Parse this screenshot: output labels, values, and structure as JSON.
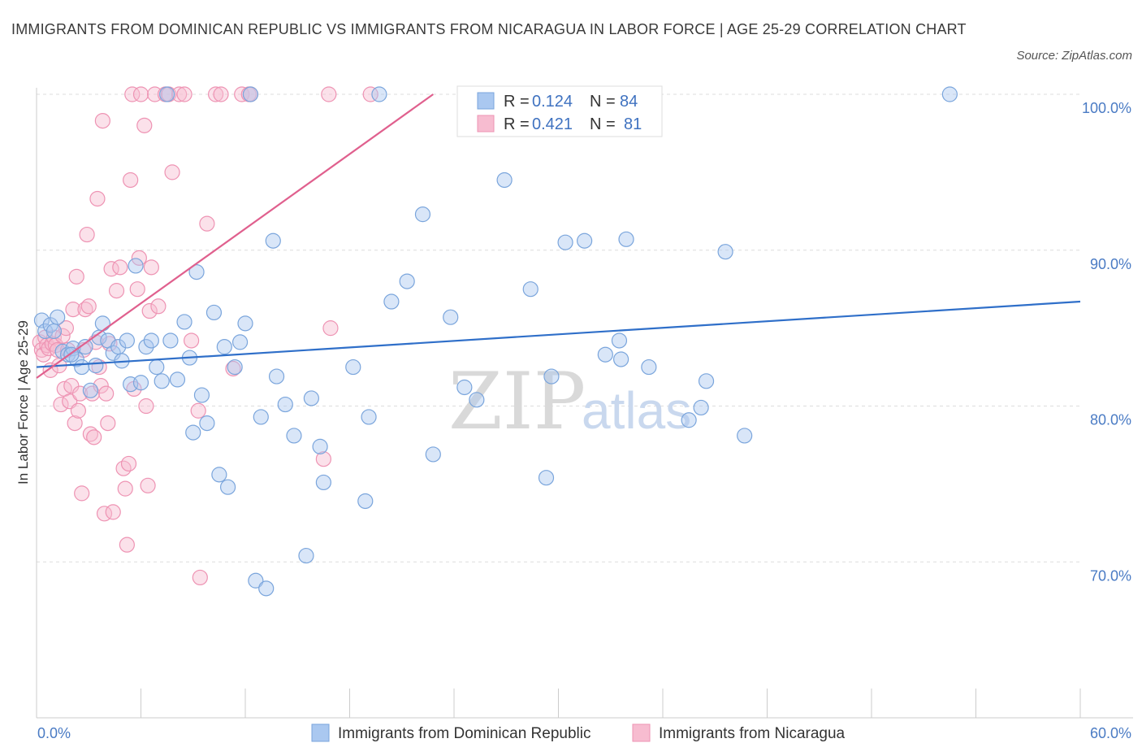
{
  "title": "IMMIGRANTS FROM DOMINICAN REPUBLIC VS IMMIGRANTS FROM NICARAGUA IN LABOR FORCE | AGE 25-29 CORRELATION CHART",
  "source": "Source: ZipAtlas.com",
  "watermark": {
    "zip": "ZIP",
    "atlas": "atlas"
  },
  "colors": {
    "blue_fill": "#aac8f0",
    "blue_stroke": "#7aa5dc",
    "blue_line": "#2f6fc9",
    "pink_fill": "#f7bcd0",
    "pink_stroke": "#ee93b3",
    "pink_line": "#e0608e",
    "grid": "#dddddd",
    "tick_text": "#4a7bc4"
  },
  "legend": {
    "series1": {
      "r_label": "R =",
      "r_value": "0.124",
      "n_label": "N =",
      "n_value": "84"
    },
    "series2": {
      "r_label": "R =",
      "r_value": "0.421",
      "n_label": "N =",
      "n_value": "81"
    }
  },
  "chart_data": {
    "type": "scatter",
    "xlabel": "",
    "ylabel": "In Labor Force | Age 25-29",
    "xlim": [
      0,
      60
    ],
    "ylim": [
      60,
      100
    ],
    "x_tick_labels": [
      "0.0%",
      "60.0%"
    ],
    "y_ticks": [
      70,
      80,
      90,
      100
    ],
    "y_tick_labels": [
      "70.0%",
      "80.0%",
      "90.0%",
      "100.0%"
    ],
    "grid": true,
    "legend_position": "top-center",
    "series": [
      {
        "name": "Immigrants from Dominican Republic",
        "r": 0.124,
        "n": 84,
        "trend": {
          "x": [
            0,
            60
          ],
          "y": [
            82.5,
            86.7
          ]
        },
        "points": [
          [
            0.3,
            85.5
          ],
          [
            0.5,
            84.8
          ],
          [
            0.8,
            85.2
          ],
          [
            1.2,
            85.7
          ],
          [
            1.5,
            83.5
          ],
          [
            1.8,
            83.3
          ],
          [
            2.1,
            83.7
          ],
          [
            2.3,
            83
          ],
          [
            2.6,
            82.5
          ],
          [
            2.8,
            83.8
          ],
          [
            3.1,
            81
          ],
          [
            3.4,
            82.6
          ],
          [
            3.6,
            84.4
          ],
          [
            3.8,
            85.3
          ],
          [
            4.1,
            84.2
          ],
          [
            4.4,
            83.4
          ],
          [
            4.7,
            83.8
          ],
          [
            4.9,
            82.9
          ],
          [
            5.2,
            84.2
          ],
          [
            5.4,
            81.4
          ],
          [
            5.7,
            89
          ],
          [
            6,
            81.5
          ],
          [
            6.3,
            83.8
          ],
          [
            6.6,
            84.2
          ],
          [
            6.9,
            82.5
          ],
          [
            7.2,
            81.6
          ],
          [
            7.5,
            100
          ],
          [
            7.7,
            84.2
          ],
          [
            8.1,
            81.7
          ],
          [
            8.5,
            85.4
          ],
          [
            8.8,
            83.1
          ],
          [
            9.0,
            78.3
          ],
          [
            9.2,
            88.6
          ],
          [
            9.5,
            80.7
          ],
          [
            9.8,
            78.9
          ],
          [
            10.2,
            86
          ],
          [
            10.5,
            75.6
          ],
          [
            10.8,
            83.8
          ],
          [
            11.0,
            74.8
          ],
          [
            11.4,
            82.5
          ],
          [
            11.7,
            84.1
          ],
          [
            12.0,
            85.3
          ],
          [
            12.3,
            100
          ],
          [
            12.6,
            68.8
          ],
          [
            12.9,
            79.3
          ],
          [
            13.2,
            68.3
          ],
          [
            13.6,
            90.6
          ],
          [
            13.8,
            81.9
          ],
          [
            14.3,
            80.1
          ],
          [
            14.8,
            78.1
          ],
          [
            15.5,
            70.4
          ],
          [
            15.8,
            80.5
          ],
          [
            16.3,
            77.4
          ],
          [
            16.5,
            75.1
          ],
          [
            18.2,
            82.5
          ],
          [
            18.9,
            73.9
          ],
          [
            19.1,
            79.3
          ],
          [
            19.7,
            100
          ],
          [
            20.4,
            86.7
          ],
          [
            21.3,
            88
          ],
          [
            22.2,
            92.3
          ],
          [
            22.8,
            76.9
          ],
          [
            23.8,
            85.7
          ],
          [
            24.6,
            81.2
          ],
          [
            25.3,
            80.4
          ],
          [
            26.9,
            94.5
          ],
          [
            28.4,
            87.5
          ],
          [
            29.3,
            75.4
          ],
          [
            29.6,
            81.9
          ],
          [
            30.4,
            90.5
          ],
          [
            31.5,
            90.6
          ],
          [
            32.7,
            83.3
          ],
          [
            33.5,
            84.2
          ],
          [
            33.6,
            83
          ],
          [
            33.9,
            90.7
          ],
          [
            35.2,
            82.5
          ],
          [
            37.5,
            79.1
          ],
          [
            38.2,
            79.9
          ],
          [
            38.5,
            81.6
          ],
          [
            39.6,
            89.9
          ],
          [
            40.7,
            78.1
          ],
          [
            52.5,
            100
          ],
          [
            1.0,
            84.8
          ],
          [
            2.0,
            83.3
          ]
        ]
      },
      {
        "name": "Immigrants from Nicaragua",
        "r": 0.421,
        "n": 81,
        "trend": {
          "x": [
            0,
            22.8
          ],
          "y": [
            81.8,
            100
          ]
        },
        "points": [
          [
            0.2,
            84.1
          ],
          [
            0.3,
            83.6
          ],
          [
            0.4,
            83.3
          ],
          [
            0.5,
            84.4
          ],
          [
            0.6,
            83.9
          ],
          [
            0.7,
            83.7
          ],
          [
            0.8,
            82.3
          ],
          [
            0.9,
            84
          ],
          [
            1.0,
            84.4
          ],
          [
            1.1,
            83.9
          ],
          [
            1.2,
            83.6
          ],
          [
            1.3,
            82.6
          ],
          [
            1.4,
            80.1
          ],
          [
            1.5,
            84.5
          ],
          [
            1.6,
            81.1
          ],
          [
            1.7,
            85
          ],
          [
            1.8,
            83.6
          ],
          [
            1.9,
            80.3
          ],
          [
            2.0,
            81.3
          ],
          [
            2.1,
            86.2
          ],
          [
            2.2,
            78.9
          ],
          [
            2.3,
            88.3
          ],
          [
            2.4,
            79.7
          ],
          [
            2.5,
            80.8
          ],
          [
            2.6,
            74.4
          ],
          [
            2.7,
            83.6
          ],
          [
            2.8,
            86.2
          ],
          [
            2.9,
            91
          ],
          [
            3.0,
            86.4
          ],
          [
            3.1,
            78.2
          ],
          [
            3.2,
            80.8
          ],
          [
            3.3,
            78
          ],
          [
            3.4,
            84.1
          ],
          [
            3.5,
            93.3
          ],
          [
            3.6,
            82.5
          ],
          [
            3.7,
            81.3
          ],
          [
            3.8,
            98.3
          ],
          [
            3.9,
            73.1
          ],
          [
            4.0,
            80.8
          ],
          [
            4.1,
            78.9
          ],
          [
            4.2,
            84
          ],
          [
            4.3,
            88.8
          ],
          [
            4.4,
            73.2
          ],
          [
            4.6,
            87.4
          ],
          [
            4.8,
            88.9
          ],
          [
            5.0,
            76
          ],
          [
            5.1,
            74.7
          ],
          [
            5.2,
            71.1
          ],
          [
            5.3,
            76.3
          ],
          [
            5.4,
            94.5
          ],
          [
            5.5,
            100
          ],
          [
            5.6,
            81.1
          ],
          [
            5.8,
            87.5
          ],
          [
            5.9,
            89.5
          ],
          [
            6.0,
            100
          ],
          [
            6.2,
            98
          ],
          [
            6.3,
            80
          ],
          [
            6.4,
            74.9
          ],
          [
            6.5,
            86.1
          ],
          [
            6.6,
            88.9
          ],
          [
            6.8,
            100
          ],
          [
            7.0,
            86.4
          ],
          [
            7.4,
            100
          ],
          [
            7.6,
            100
          ],
          [
            7.8,
            95
          ],
          [
            8.2,
            100
          ],
          [
            8.5,
            100
          ],
          [
            8.9,
            84.2
          ],
          [
            9.3,
            79.7
          ],
          [
            9.4,
            69
          ],
          [
            9.8,
            91.7
          ],
          [
            10.3,
            100
          ],
          [
            10.6,
            100
          ],
          [
            11.3,
            82.4
          ],
          [
            11.8,
            100
          ],
          [
            12.2,
            100
          ],
          [
            12.3,
            100
          ],
          [
            16.5,
            76.6
          ],
          [
            16.9,
            85
          ],
          [
            16.8,
            100
          ],
          [
            19.2,
            100
          ]
        ]
      }
    ]
  },
  "bottom_legend": {
    "series1_label": "Immigrants from Dominican Republic",
    "series2_label": "Immigrants from Nicaragua"
  }
}
